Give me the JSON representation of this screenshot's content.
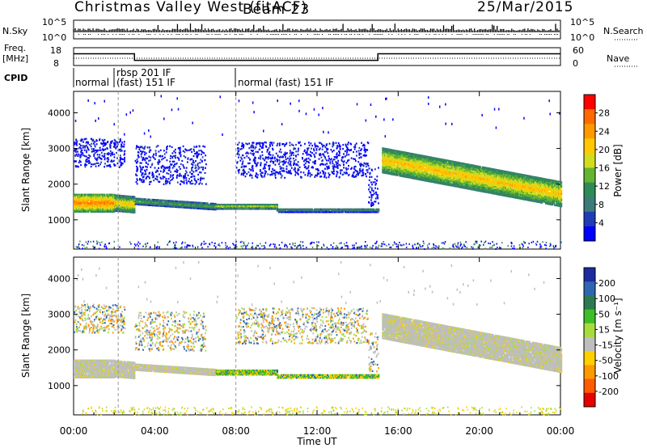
{
  "header": {
    "title": "Christmas Valley West (fitACF)",
    "beam": "Beam 23",
    "date": "25/Mar/2015"
  },
  "top_panels": {
    "nsky_label": "N.Sky",
    "nsky_ticks": [
      "10^5",
      "10^0"
    ],
    "nsearch_label": "N.Search",
    "nsearch_ticks": [
      "10^5",
      "10^0"
    ],
    "freq_label": "Freq.",
    "freq_unit": "[MHz]",
    "freq_ticks": [
      "18",
      "8"
    ],
    "nave_label": "Nave",
    "nave_ticks": [
      "60",
      "0"
    ],
    "cpid_label": "CPID",
    "cpid_segments": [
      {
        "start": 0.0,
        "text": "normal"
      },
      {
        "start": 2.2,
        "text": "rbsp 201 IF"
      },
      {
        "start": 2.2,
        "text": "(fast) 151 IF"
      },
      {
        "start": 8.0,
        "text": "normal (fast) 151 IF"
      }
    ],
    "freq_series": [
      [
        0,
        14.6
      ],
      [
        3.0,
        14.6
      ],
      [
        3.0,
        10.9
      ],
      [
        15.0,
        10.9
      ],
      [
        15.0,
        14.6
      ],
      [
        24,
        14.6
      ]
    ]
  },
  "colorbars": {
    "power": {
      "label": "Power [dB]",
      "ticks": [
        "28",
        "24",
        "20",
        "16",
        "12",
        "8",
        "4"
      ],
      "colors": [
        "#ff0000",
        "#ff6a00",
        "#ff9900",
        "#ffc800",
        "#d2dc1e",
        "#64b432",
        "#2e8b57",
        "#3d7a7a",
        "#1e3cb4",
        "#0000ff"
      ]
    },
    "velocity": {
      "label": "Velocity [m s⁻¹]",
      "ticks": [
        "200",
        "100",
        "50",
        "15",
        "-15",
        "-50",
        "-100",
        "-200"
      ],
      "colors": [
        "#1e2aa0",
        "#2e66b4",
        "#2e7a50",
        "#3cbe28",
        "#a8dc3c",
        "#bebebe",
        "#ffd000",
        "#ff9900",
        "#ff5a00",
        "#e60000"
      ]
    }
  },
  "chart_data": [
    {
      "type": "heatmap",
      "name": "power",
      "ylabel": "Slant Range [km]",
      "xlabel": "Time UT",
      "xlim": [
        0,
        24
      ],
      "ylim": [
        180,
        4600
      ],
      "yticks": [
        "1000",
        "2000",
        "3000",
        "4000"
      ],
      "xticks": [
        "00:00",
        "04:00",
        "08:00",
        "12:00",
        "16:00",
        "20:00",
        "00:00"
      ],
      "bands": [
        {
          "t0": 0.0,
          "t1": 2.0,
          "c0": 1500,
          "c1": 1500,
          "w": 500,
          "mid": 26,
          "edge": 12
        },
        {
          "t0": 2.0,
          "t1": 3.0,
          "c0": 1500,
          "c1": 1450,
          "w": 450,
          "mid": 22,
          "edge": 8
        },
        {
          "t0": 3.0,
          "t1": 7.0,
          "c0": 1550,
          "c1": 1400,
          "w": 180,
          "mid": 14,
          "edge": 6
        },
        {
          "t0": 7.0,
          "t1": 10.0,
          "c0": 1400,
          "c1": 1400,
          "w": 140,
          "mid": 18,
          "edge": 8
        },
        {
          "t0": 10.0,
          "t1": 15.0,
          "c0": 1300,
          "c1": 1300,
          "w": 120,
          "mid": 12,
          "edge": 4
        },
        {
          "t0": 15.2,
          "t1": 24.0,
          "c0": 2700,
          "c1": 1750,
          "w": 700,
          "mid": 22,
          "edge": 10
        }
      ],
      "scatter_regions": [
        {
          "t0": 0.0,
          "t1": 2.5,
          "r0": 2500,
          "r1": 3300
        },
        {
          "t0": 3.0,
          "t1": 6.5,
          "r0": 2000,
          "r1": 3100
        },
        {
          "t0": 8.0,
          "t1": 14.5,
          "r0": 2200,
          "r1": 3200
        },
        {
          "t0": 14.5,
          "t1": 15.0,
          "r0": 1400,
          "r1": 2500
        }
      ]
    },
    {
      "type": "heatmap",
      "name": "velocity",
      "ylabel": "Slant Range [km]",
      "xlabel": "Time UT",
      "xlim": [
        0,
        24
      ],
      "ylim": [
        180,
        4600
      ],
      "yticks": [
        "1000",
        "2000",
        "3000",
        "4000"
      ],
      "xticks": [
        "00:00",
        "04:00",
        "08:00",
        "12:00",
        "16:00",
        "20:00",
        "00:00"
      ]
    }
  ]
}
